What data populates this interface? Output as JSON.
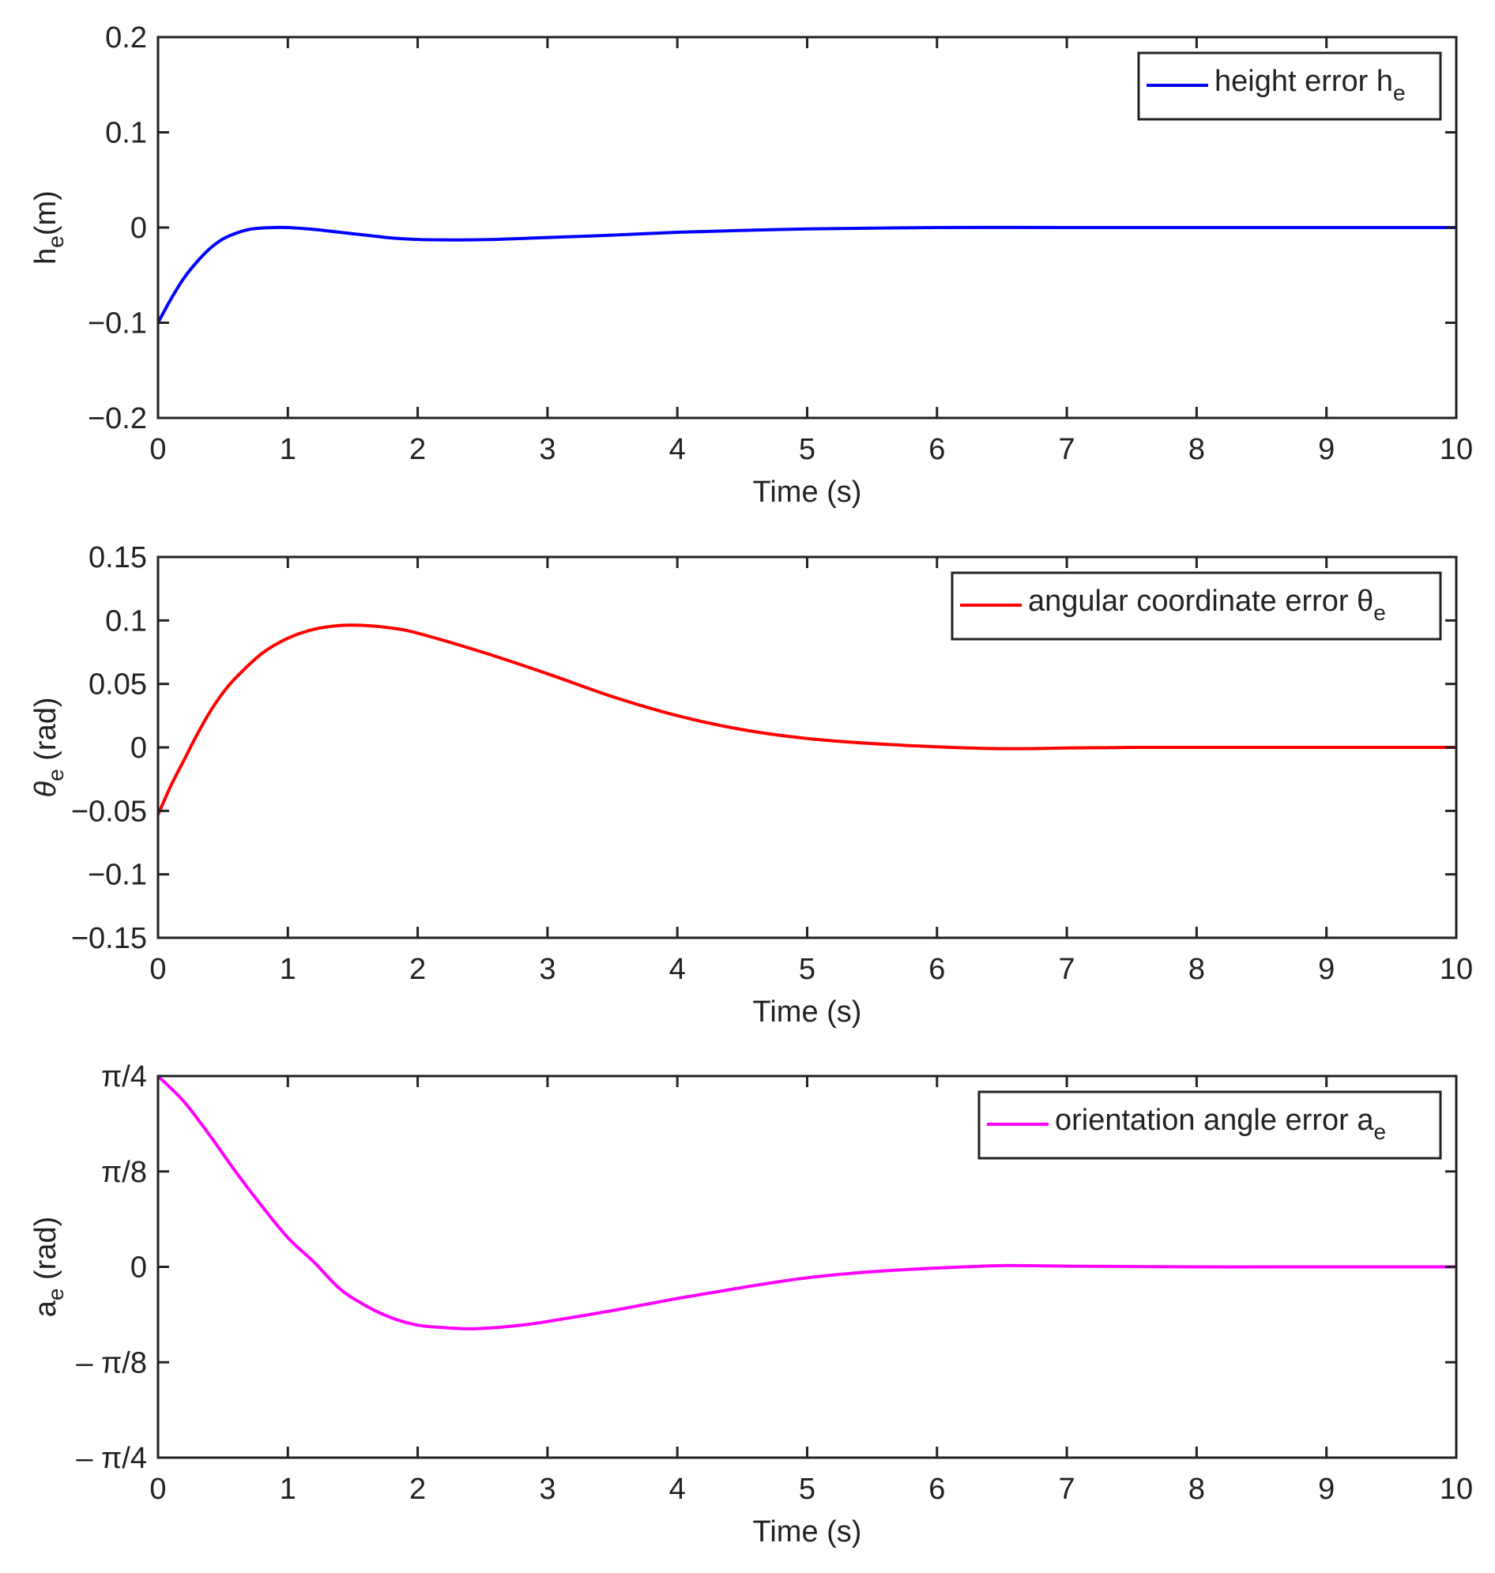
{
  "chart_data": [
    {
      "type": "line",
      "title": "",
      "xlabel": "Time (s)",
      "ylabel": {
        "main": "h",
        "sub": "e",
        "rest": "(m)"
      },
      "xlim": [
        0,
        10
      ],
      "ylim": [
        -0.2,
        0.2
      ],
      "xticks": [
        0,
        1,
        2,
        3,
        4,
        5,
        6,
        7,
        8,
        9,
        10
      ],
      "xtick_labels": [
        "0",
        "1",
        "2",
        "3",
        "4",
        "5",
        "6",
        "7",
        "8",
        "9",
        "10"
      ],
      "yticks": [
        0.2,
        0.1,
        0,
        -0.1,
        -0.2
      ],
      "ytick_labels": [
        "0.2",
        "0.1",
        "0",
        "−0.1",
        "−0.2"
      ],
      "legend": {
        "position": "top-right",
        "text": "height error h",
        "sub": "e",
        "color": "#0000ff"
      },
      "series": [
        {
          "name": "height error h_e",
          "color": "#0000ff",
          "x": [
            0,
            0.1,
            0.2,
            0.3,
            0.4,
            0.5,
            0.6,
            0.7,
            0.8,
            0.9,
            1.0,
            1.2,
            1.4,
            1.6,
            1.8,
            2.0,
            2.2,
            2.4,
            2.6,
            2.8,
            3.0,
            3.5,
            4.0,
            4.5,
            5.0,
            6.0,
            7.0,
            8.0,
            9.0,
            10.0
          ],
          "values": [
            -0.1,
            -0.075,
            -0.053,
            -0.036,
            -0.022,
            -0.012,
            -0.006,
            -0.002,
            -0.0005,
            0.0,
            0.0,
            -0.002,
            -0.005,
            -0.008,
            -0.011,
            -0.0125,
            -0.013,
            -0.013,
            -0.0125,
            -0.0115,
            -0.0105,
            -0.008,
            -0.005,
            -0.003,
            -0.0015,
            0.0,
            0.0,
            0.0,
            0.0,
            0.0
          ]
        }
      ]
    },
    {
      "type": "line",
      "title": "",
      "xlabel": "Time (s)",
      "ylabel": {
        "main": "θ",
        "sub": "e",
        "rest": " (rad)"
      },
      "xlim": [
        0,
        10
      ],
      "ylim": [
        -0.15,
        0.15
      ],
      "xticks": [
        0,
        1,
        2,
        3,
        4,
        5,
        6,
        7,
        8,
        9,
        10
      ],
      "xtick_labels": [
        "0",
        "1",
        "2",
        "3",
        "4",
        "5",
        "6",
        "7",
        "8",
        "9",
        "10"
      ],
      "yticks": [
        0.15,
        0.1,
        0.05,
        0,
        -0.05,
        -0.1,
        -0.15
      ],
      "ytick_labels": [
        "0.15",
        "0.1",
        "0.05",
        "0",
        "−0.05",
        "−0.1",
        "−0.15"
      ],
      "legend": {
        "position": "top-right",
        "text": "angular coordinate error θ",
        "sub": "e",
        "color": "#ff0000"
      },
      "series": [
        {
          "name": "angular coordinate error theta_e",
          "color": "#ff0000",
          "x": [
            0,
            0.1,
            0.2,
            0.3,
            0.4,
            0.5,
            0.6,
            0.8,
            1.0,
            1.2,
            1.4,
            1.6,
            1.8,
            2.0,
            2.5,
            3.0,
            3.5,
            4.0,
            4.5,
            5.0,
            5.5,
            6.0,
            6.5,
            7.0,
            7.5,
            8.0,
            9.0,
            10.0
          ],
          "values": [
            -0.053,
            -0.03,
            -0.01,
            0.01,
            0.028,
            0.043,
            0.055,
            0.074,
            0.086,
            0.093,
            0.096,
            0.096,
            0.094,
            0.09,
            0.075,
            0.058,
            0.04,
            0.025,
            0.014,
            0.007,
            0.003,
            0.0005,
            -0.001,
            -0.0005,
            0.0,
            0.0,
            0.0,
            0.0
          ]
        }
      ]
    },
    {
      "type": "line",
      "title": "",
      "xlabel": "Time (s)",
      "ylabel": {
        "main": "a",
        "sub": "e",
        "rest": " (rad)"
      },
      "xlim": [
        0,
        10
      ],
      "ylim": [
        -0.7854,
        0.7854
      ],
      "xticks": [
        0,
        1,
        2,
        3,
        4,
        5,
        6,
        7,
        8,
        9,
        10
      ],
      "xtick_labels": [
        "0",
        "1",
        "2",
        "3",
        "4",
        "5",
        "6",
        "7",
        "8",
        "9",
        "10"
      ],
      "yticks": [
        0.7854,
        0.3927,
        0,
        -0.3927,
        -0.7854
      ],
      "ytick_labels": [
        "π/4",
        "π/8",
        "0",
        "– π/8",
        "– π/4"
      ],
      "legend": {
        "position": "top-right",
        "text": "orientation angle error a",
        "sub": "e",
        "color": "#ff00ff"
      },
      "series": [
        {
          "name": "orientation angle error a_e",
          "color": "#ff00ff",
          "x": [
            0,
            0.2,
            0.4,
            0.6,
            0.8,
            1.0,
            1.2,
            1.4,
            1.6,
            1.8,
            2.0,
            2.2,
            2.4,
            2.6,
            2.8,
            3.0,
            3.5,
            4.0,
            4.5,
            5.0,
            5.5,
            6.0,
            6.5,
            7.0,
            8.0,
            9.0,
            10.0
          ],
          "values": [
            0.785,
            0.68,
            0.54,
            0.39,
            0.25,
            0.12,
            0.02,
            -0.09,
            -0.16,
            -0.21,
            -0.24,
            -0.25,
            -0.255,
            -0.25,
            -0.24,
            -0.225,
            -0.18,
            -0.13,
            -0.085,
            -0.045,
            -0.02,
            -0.005,
            0.005,
            0.003,
            0.0,
            0.0,
            0.0
          ]
        }
      ]
    }
  ]
}
